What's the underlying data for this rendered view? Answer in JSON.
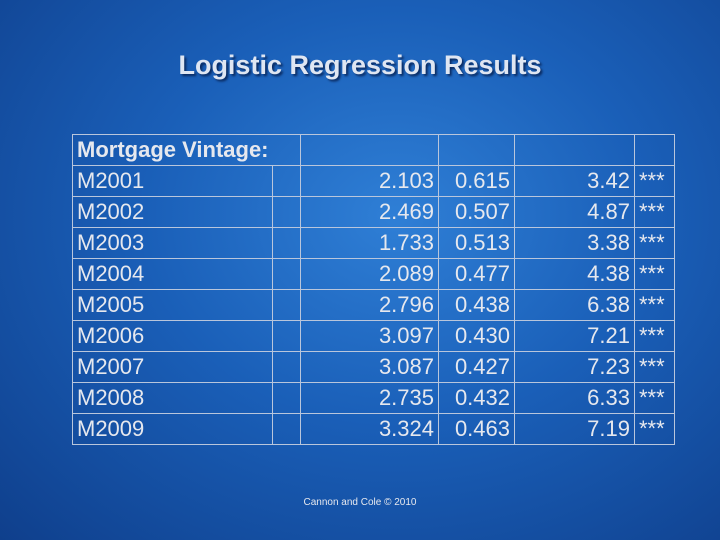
{
  "header": {
    "title": "Logistic Regression Results"
  },
  "table": {
    "heading": "Mortgage Vintage:",
    "rows": [
      [
        "M2001",
        "2.103",
        "0.615",
        "3.42",
        "***"
      ],
      [
        "M2002",
        "2.469",
        "0.507",
        "4.87",
        "***"
      ],
      [
        "M2003",
        "1.733",
        "0.513",
        "3.38",
        "***"
      ],
      [
        "M2004",
        "2.089",
        "0.477",
        "4.38",
        "***"
      ],
      [
        "M2005",
        "2.796",
        "0.438",
        "6.38",
        "***"
      ],
      [
        "M2006",
        "3.097",
        "0.430",
        "7.21",
        "***"
      ],
      [
        "M2007",
        "3.087",
        "0.427",
        "7.23",
        "***"
      ],
      [
        "M2008",
        "2.735",
        "0.432",
        "6.33",
        "***"
      ],
      [
        "M2009",
        "3.324",
        "0.463",
        "7.19",
        "***"
      ]
    ]
  },
  "footer": "Cannon and Cole © 2010"
}
